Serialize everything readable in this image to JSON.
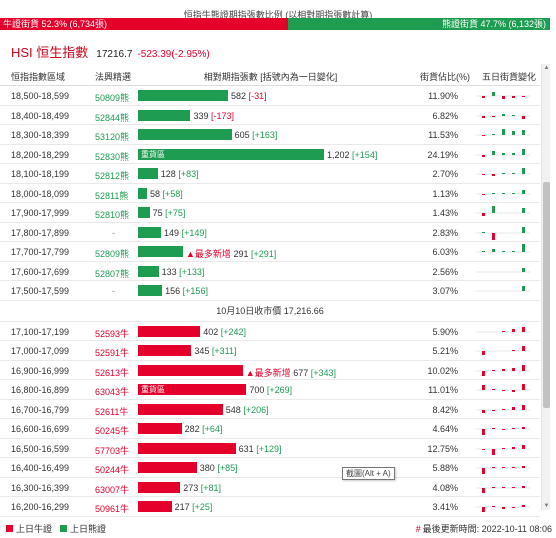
{
  "ratio": {
    "title": "恒指牛熊證期指張數比例 (以相對期指張數計算)",
    "bull_label": "牛證街貨 52.3% (6,734張)",
    "bear_label": "熊證街貨 47.7% (6,132張)",
    "bull_pct": 52.3,
    "bear_pct": 47.7
  },
  "hsi": {
    "name": "HSI 恒生指數",
    "value": "17216.7",
    "change": "-523.39(-2.95%)"
  },
  "headers": {
    "range": "恒指指數區域",
    "code": "法興精選",
    "bar": "相對期指張數 [括號內為一日變化]",
    "pct": "街貨佔比(%)",
    "spark": "五日街貨變化"
  },
  "heavy_label": "重貨區",
  "newest_label": "▲最多新增",
  "bar_max": 1202,
  "bear_rows": [
    {
      "range": "18,500-18,599",
      "code": "50809熊",
      "contracts": 582,
      "value_text": "582",
      "change": "[-31]",
      "neg": true,
      "pct": "11.90%",
      "spark": [
        -2,
        4,
        -3,
        -2,
        -1
      ]
    },
    {
      "range": "18,400-18,499",
      "code": "52844熊",
      "contracts": 339,
      "value_text": "339",
      "change": "[-173]",
      "neg": true,
      "pct": "6.82%",
      "spark": [
        -2,
        -1,
        2,
        1,
        -3
      ]
    },
    {
      "range": "18,300-18,399",
      "code": "53120熊",
      "contracts": 605,
      "value_text": "605",
      "change": "[+163]",
      "neg": false,
      "pct": "11.53%",
      "spark": [
        -1,
        1,
        6,
        4,
        5
      ]
    },
    {
      "range": "18,200-18,299",
      "code": "52830熊",
      "contracts": 1202,
      "value_text": "1,202",
      "change": "[+154]",
      "neg": false,
      "pct": "24.19%",
      "spark": [
        -2,
        4,
        2,
        2,
        6
      ],
      "heavy": true
    },
    {
      "range": "18,100-18,199",
      "code": "52812熊",
      "contracts": 128,
      "value_text": "128",
      "change": "[+83]",
      "neg": false,
      "pct": "2.70%",
      "spark": [
        -1,
        -2,
        1,
        1,
        6
      ]
    },
    {
      "range": "18,000-18,099",
      "code": "52811熊",
      "contracts": 58,
      "value_text": "58",
      "change": "[+58]",
      "neg": false,
      "pct": "1.13%",
      "spark": [
        -1,
        1,
        1,
        1,
        4
      ]
    },
    {
      "range": "17,900-17,999",
      "code": "52810熊",
      "contracts": 75,
      "value_text": "75",
      "change": "[+75]",
      "neg": false,
      "pct": "1.43%",
      "spark": [
        -3,
        7,
        0,
        0,
        5
      ]
    },
    {
      "range": "17,800-17,899",
      "code": "-",
      "contracts": 149,
      "value_text": "149",
      "change": "[+149]",
      "neg": false,
      "pct": "2.83%",
      "spark": [
        1,
        -7,
        0,
        0,
        6
      ]
    },
    {
      "range": "17,700-17,799",
      "code": "52809熊",
      "contracts": 291,
      "value_text": "291",
      "change": "[+291]",
      "neg": false,
      "pct": "6.03%",
      "spark": [
        1,
        3,
        1,
        1,
        8
      ],
      "newest": true
    },
    {
      "range": "17,600-17,699",
      "code": "52807熊",
      "contracts": 133,
      "value_text": "133",
      "change": "[+133]",
      "neg": false,
      "pct": "2.56%",
      "spark": [
        0,
        0,
        0,
        0,
        4
      ]
    },
    {
      "range": "17,500-17,599",
      "code": "-",
      "contracts": 156,
      "value_text": "156",
      "change": "[+156]",
      "neg": false,
      "pct": "3.07%",
      "spark": [
        0,
        0,
        0,
        0,
        5
      ]
    }
  ],
  "close_label": "10月10日收市價 17,216.66",
  "bull_rows": [
    {
      "range": "17,100-17,199",
      "code": "52593牛",
      "contracts": 402,
      "value_text": "402",
      "change": "[+242]",
      "neg": false,
      "pct": "5.90%",
      "spark": [
        0,
        0,
        1,
        3,
        5
      ]
    },
    {
      "range": "17,000-17,099",
      "code": "52591牛",
      "contracts": 345,
      "value_text": "345",
      "change": "[+311]",
      "neg": false,
      "pct": "5.21%",
      "spark": [
        -4,
        0,
        0,
        1,
        5
      ]
    },
    {
      "range": "16,900-16,999",
      "code": "52613牛",
      "contracts": 677,
      "value_text": "677",
      "change": "[+343]",
      "neg": false,
      "pct": "10.02%",
      "spark": [
        -5,
        1,
        2,
        3,
        6
      ],
      "newest": true
    },
    {
      "range": "16,800-16,899",
      "code": "63043牛",
      "contracts": 700,
      "value_text": "700",
      "change": "[+269]",
      "neg": false,
      "pct": "11.01%",
      "spark": [
        5,
        1,
        -1,
        -2,
        6
      ],
      "heavy": true
    },
    {
      "range": "16,700-16,799",
      "code": "52611牛",
      "contracts": 548,
      "value_text": "548",
      "change": "[+206]",
      "neg": false,
      "pct": "8.42%",
      "spark": [
        -3,
        -1,
        1,
        3,
        5
      ]
    },
    {
      "range": "16,600-16,699",
      "code": "50245牛",
      "contracts": 282,
      "value_text": "282",
      "change": "[+64]",
      "neg": false,
      "pct": "4.64%",
      "spark": [
        -6,
        1,
        -1,
        1,
        2
      ]
    },
    {
      "range": "16,500-16,599",
      "code": "57703牛",
      "contracts": 631,
      "value_text": "631",
      "change": "[+129]",
      "neg": false,
      "pct": "12.75%",
      "spark": [
        -1,
        -6,
        1,
        2,
        4
      ]
    },
    {
      "range": "16,400-16,499",
      "code": "50244牛",
      "contracts": 380,
      "value_text": "380",
      "change": "[+85]",
      "neg": false,
      "pct": "5.88%",
      "spark": [
        -6,
        1,
        1,
        1,
        2
      ]
    },
    {
      "range": "16,300-16,399",
      "code": "63007牛",
      "contracts": 273,
      "value_text": "273",
      "change": "[+81]",
      "neg": false,
      "pct": "4.08%",
      "spark": [
        -5,
        1,
        1,
        1,
        2
      ]
    },
    {
      "range": "16,200-16,299",
      "code": "50961牛",
      "contracts": 217,
      "value_text": "217",
      "change": "[+25]",
      "neg": false,
      "pct": "3.41%",
      "spark": [
        -5,
        1,
        -2,
        -1,
        2
      ]
    }
  ],
  "tooltip": "截圖(Alt + A)",
  "legend": {
    "bull": "上日牛證",
    "bear": "上日熊證"
  },
  "update": {
    "hash": "#",
    "text": "最後更新時間: 2022-10-11 08:06"
  },
  "colors": {
    "bull": "#e4002b",
    "bear": "#1e9c52"
  }
}
